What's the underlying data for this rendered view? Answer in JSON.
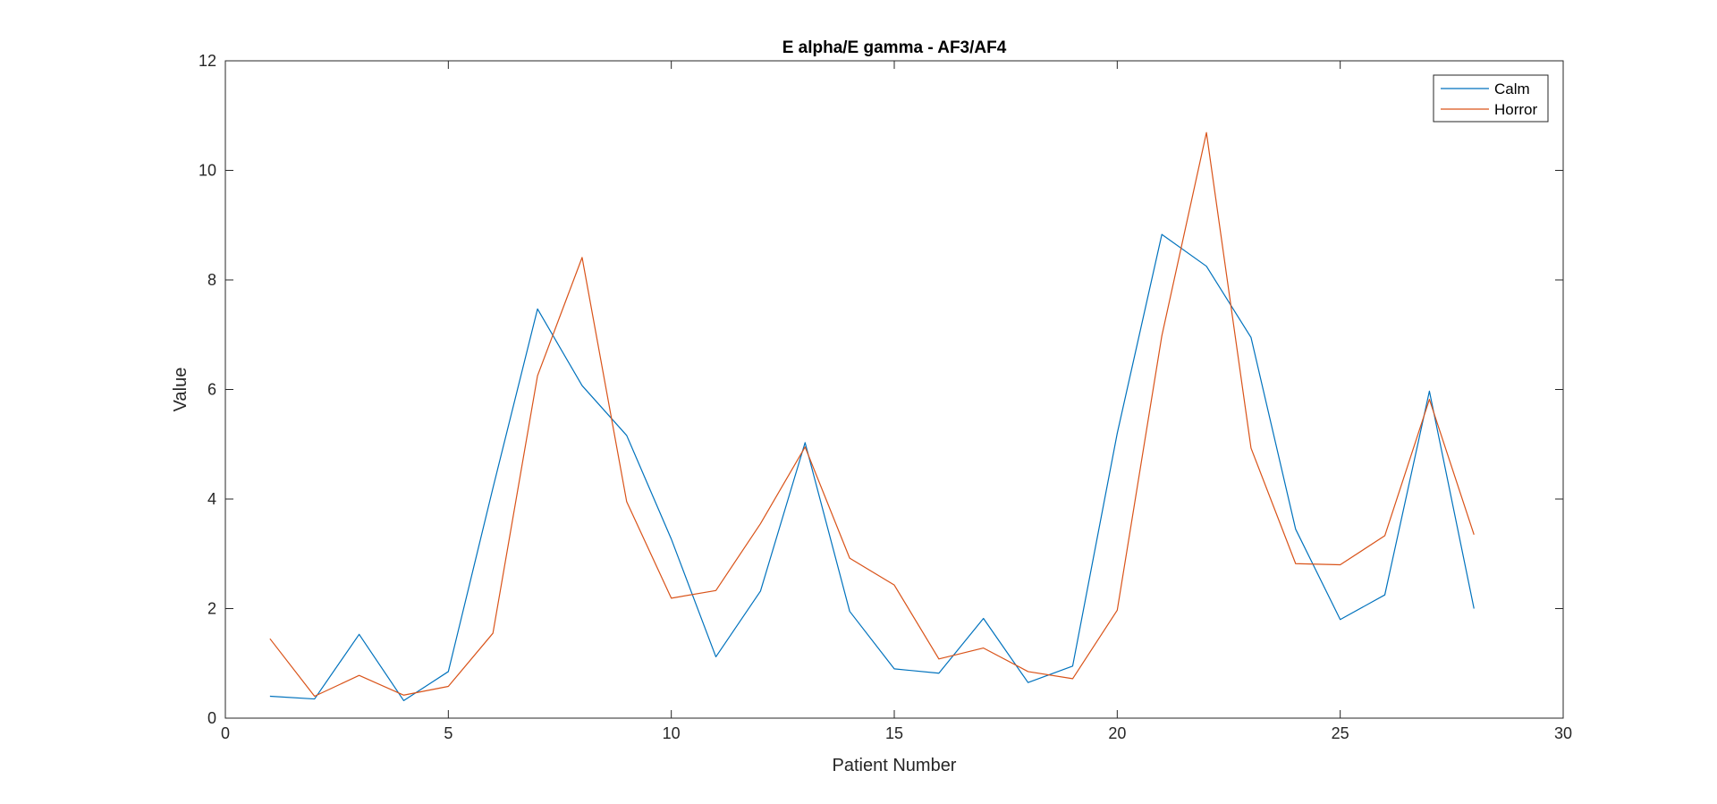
{
  "chart_data": {
    "type": "line",
    "title": "E alpha/E gamma - AF3/AF4",
    "xlabel": "Patient Number",
    "ylabel": "Value",
    "xlim": [
      0,
      30
    ],
    "ylim": [
      0,
      12
    ],
    "xticks": [
      0,
      5,
      10,
      15,
      20,
      25,
      30
    ],
    "yticks": [
      0,
      2,
      4,
      6,
      8,
      10,
      12
    ],
    "grid": false,
    "legend_position": "top-right",
    "x": [
      1,
      2,
      3,
      4,
      5,
      6,
      7,
      8,
      9,
      10,
      11,
      12,
      13,
      14,
      15,
      16,
      17,
      18,
      19,
      20,
      21,
      22,
      23,
      24,
      25,
      26,
      27,
      28
    ],
    "series": [
      {
        "name": "Calm",
        "color": "#0072BD",
        "values": [
          0.4,
          0.35,
          1.53,
          0.32,
          0.85,
          4.2,
          7.47,
          6.07,
          5.16,
          3.27,
          1.12,
          2.32,
          5.03,
          1.95,
          0.9,
          0.82,
          1.82,
          0.65,
          0.95,
          5.2,
          8.83,
          8.25,
          6.95,
          3.45,
          1.8,
          2.25,
          5.97,
          2.0
        ]
      },
      {
        "name": "Horror",
        "color": "#D95319",
        "values": [
          1.45,
          0.4,
          0.78,
          0.42,
          0.58,
          1.55,
          6.25,
          8.41,
          3.95,
          2.19,
          2.33,
          3.55,
          4.95,
          2.92,
          2.43,
          1.08,
          1.28,
          0.85,
          0.72,
          1.97,
          6.98,
          10.69,
          4.93,
          2.82,
          2.8,
          3.33,
          5.82,
          3.35
        ]
      }
    ]
  }
}
